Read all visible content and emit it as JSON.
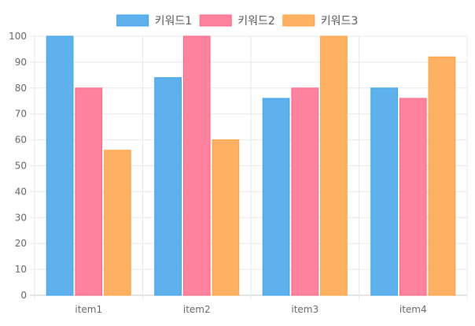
{
  "chart_data": {
    "type": "bar",
    "categories": [
      "item1",
      "item2",
      "item3",
      "item4"
    ],
    "series": [
      {
        "name": "키워드1",
        "values": [
          100,
          84,
          76,
          80
        ],
        "fill": "#5fb1ee",
        "stroke": "#36a2eb"
      },
      {
        "name": "키워드2",
        "values": [
          80,
          100,
          80,
          76
        ],
        "fill": "#ff829f",
        "stroke": "#ff6384"
      },
      {
        "name": "키워드3",
        "values": [
          56,
          60,
          100,
          92
        ],
        "fill": "#ffb163",
        "stroke": "#ff9f40"
      }
    ],
    "ylim": [
      0,
      100
    ],
    "yticks": [
      0,
      10,
      20,
      30,
      40,
      50,
      60,
      70,
      80,
      90,
      100
    ],
    "grid": true,
    "legend": "top-center"
  }
}
